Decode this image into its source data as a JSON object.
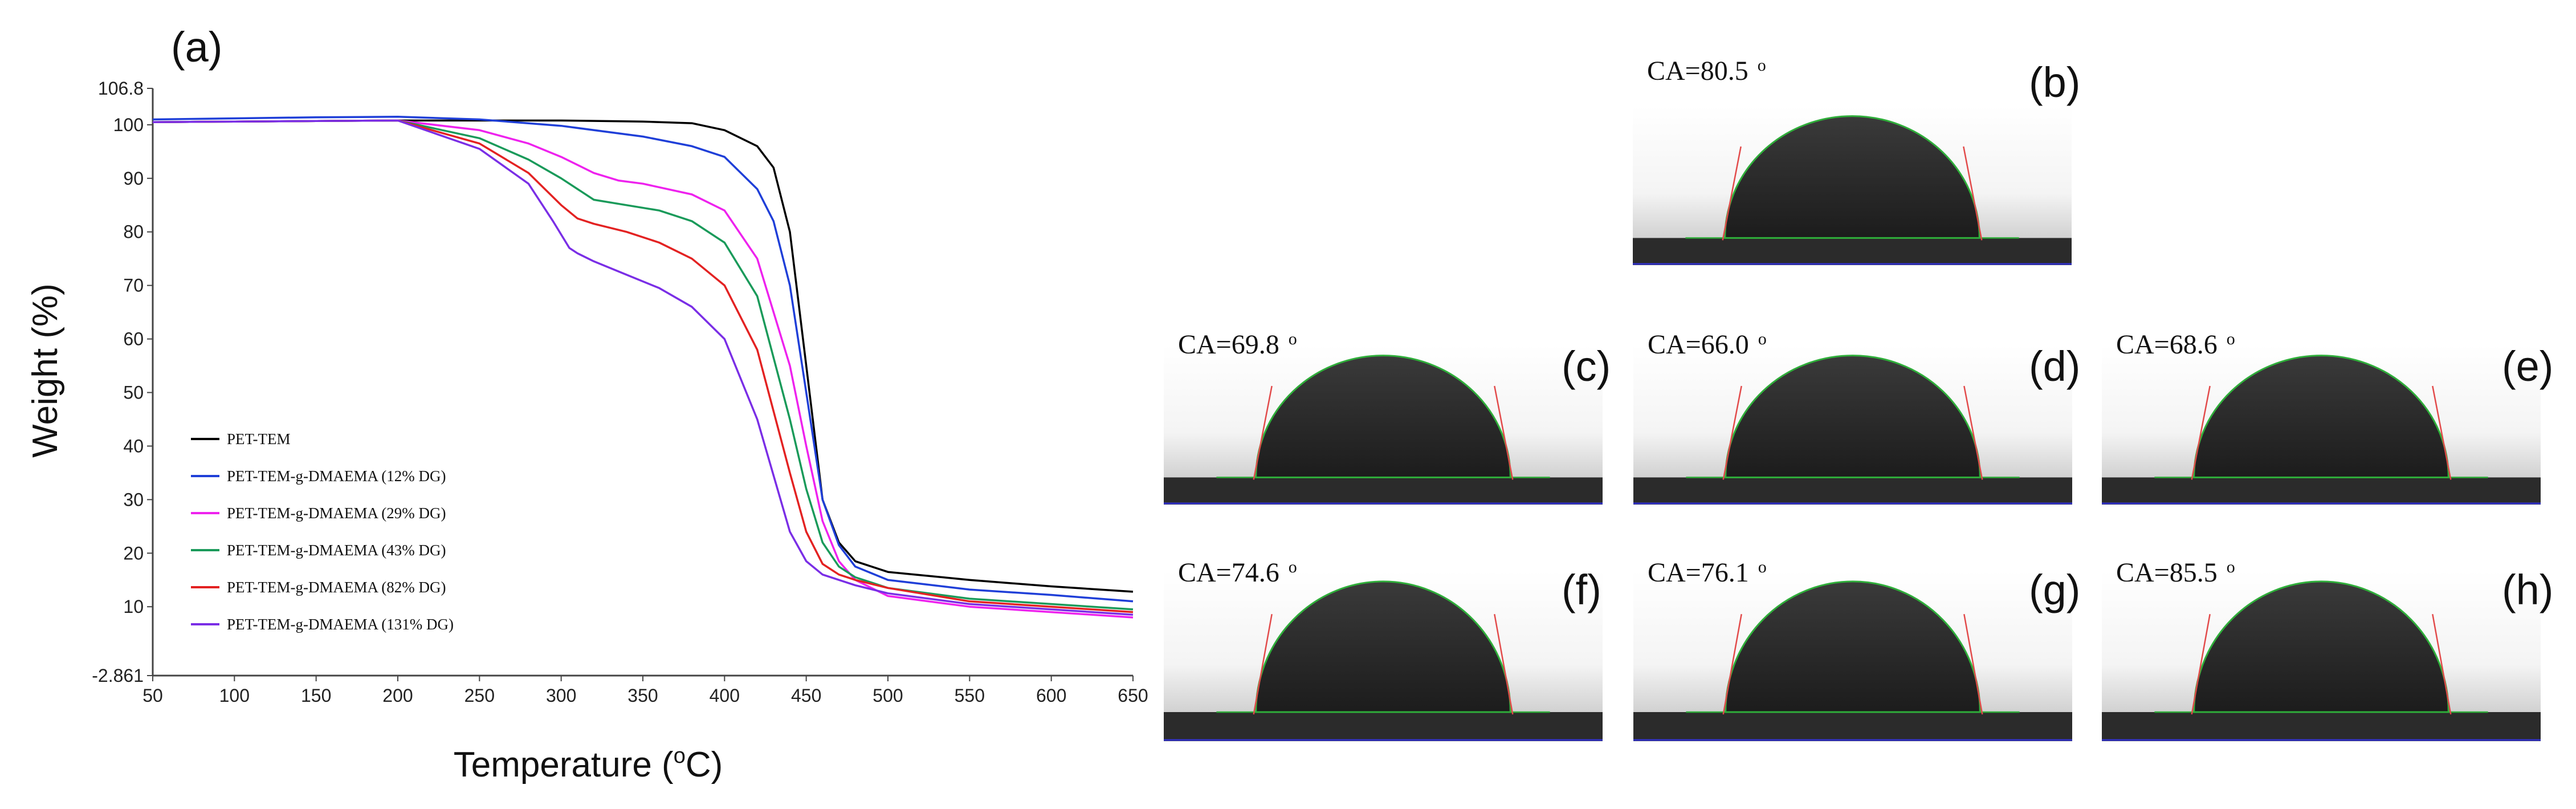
{
  "chart_data": {
    "type": "line",
    "panel_label": "(a)",
    "xlabel": "Temperature (",
    "xlabel_sup": "o",
    "xlabel_tail": "C)",
    "ylabel": "Weight  (%)",
    "xlim": [
      50,
      650
    ],
    "ylim": [
      -2.861,
      106.8
    ],
    "xticks": [
      "50",
      "100",
      "150",
      "200",
      "250",
      "300",
      "350",
      "400",
      "450",
      "500",
      "550",
      "600",
      "650"
    ],
    "yticks": [
      {
        "v": 106.8,
        "label": "106.8"
      },
      {
        "v": 100,
        "label": "100"
      },
      {
        "v": 90,
        "label": "90"
      },
      {
        "v": 80,
        "label": "80"
      },
      {
        "v": 70,
        "label": "70"
      },
      {
        "v": 60,
        "label": "60"
      },
      {
        "v": 50,
        "label": "50"
      },
      {
        "v": 40,
        "label": "40"
      },
      {
        "v": 30,
        "label": "30"
      },
      {
        "v": 20,
        "label": "20"
      },
      {
        "v": 10,
        "label": "10"
      },
      {
        "v": -2.861,
        "label": "-2.861"
      }
    ],
    "grid": false,
    "legend_position": "lower-left",
    "series": [
      {
        "name": "PET-TEM",
        "color": "#000000",
        "x": [
          50,
          100,
          150,
          200,
          250,
          300,
          350,
          380,
          400,
          420,
          430,
          440,
          450,
          460,
          470,
          480,
          500,
          550,
          600,
          650
        ],
        "y": [
          100.5,
          100.6,
          100.7,
          100.8,
          100.8,
          100.8,
          100.6,
          100.3,
          99.0,
          96.0,
          92.0,
          80.0,
          55.0,
          30.0,
          22.0,
          18.5,
          16.5,
          15.0,
          13.8,
          12.8
        ]
      },
      {
        "name": "PET-TEM-g-DMAEMA (12% DG)",
        "color": "#1f3fd8",
        "x": [
          50,
          100,
          150,
          200,
          250,
          300,
          350,
          380,
          400,
          420,
          430,
          440,
          450,
          460,
          470,
          480,
          500,
          550,
          600,
          650
        ],
        "y": [
          101.0,
          101.2,
          101.4,
          101.5,
          101.0,
          99.8,
          97.8,
          96.0,
          94.0,
          88.0,
          82.0,
          70.0,
          50.0,
          30.0,
          21.5,
          17.5,
          15.0,
          13.2,
          12.2,
          11.0
        ]
      },
      {
        "name": "PET-TEM-g-DMAEMA (29% DG)",
        "color": "#ee22ee",
        "x": [
          50,
          100,
          150,
          200,
          250,
          280,
          300,
          320,
          335,
          350,
          380,
          400,
          420,
          440,
          450,
          460,
          470,
          480,
          500,
          550,
          600,
          650
        ],
        "y": [
          100.5,
          100.6,
          100.7,
          100.8,
          99.0,
          96.5,
          94.0,
          91.0,
          89.6,
          89.0,
          87.0,
          84.0,
          75.0,
          55.0,
          40.0,
          26.0,
          18.5,
          15.0,
          12.0,
          10.0,
          9.0,
          8.0
        ]
      },
      {
        "name": "PET-TEM-g-DMAEMA (43% DG)",
        "color": "#1a9a5a",
        "x": [
          50,
          100,
          150,
          200,
          250,
          280,
          300,
          320,
          340,
          360,
          380,
          400,
          420,
          440,
          450,
          460,
          470,
          480,
          500,
          550,
          600,
          650
        ],
        "y": [
          100.5,
          100.6,
          100.7,
          100.8,
          97.5,
          93.5,
          90.0,
          86.0,
          85.0,
          84.0,
          82.0,
          78.0,
          68.0,
          45.0,
          32.0,
          22.0,
          17.5,
          15.5,
          13.5,
          11.5,
          10.5,
          9.5
        ]
      },
      {
        "name": "PET-TEM-g-DMAEMA (82% DG)",
        "color": "#e32222",
        "x": [
          50,
          100,
          150,
          200,
          250,
          280,
          300,
          310,
          320,
          340,
          360,
          380,
          400,
          420,
          440,
          450,
          460,
          470,
          480,
          500,
          550,
          600,
          650
        ],
        "y": [
          100.5,
          100.6,
          100.7,
          100.8,
          96.5,
          91.0,
          85.0,
          82.5,
          81.5,
          80.0,
          78.0,
          75.0,
          70.0,
          58.0,
          35.0,
          24.0,
          18.0,
          16.0,
          15.0,
          13.5,
          11.0,
          10.0,
          9.0
        ]
      },
      {
        "name": "PET-TEM-g-DMAEMA (131% DG)",
        "color": "#7a2ee6",
        "x": [
          50,
          100,
          150,
          200,
          250,
          280,
          295,
          305,
          310,
          320,
          340,
          360,
          380,
          400,
          420,
          440,
          450,
          460,
          470,
          480,
          500,
          550,
          600,
          650
        ],
        "y": [
          100.5,
          100.6,
          100.7,
          100.8,
          95.5,
          89.0,
          82.0,
          77.0,
          76.0,
          74.5,
          72.0,
          69.5,
          66.0,
          60.0,
          45.0,
          24.0,
          18.5,
          16.0,
          15.0,
          14.0,
          12.5,
          10.5,
          9.5,
          8.5
        ]
      }
    ]
  },
  "contact_angle_panels": [
    {
      "id": "b",
      "label": "(b)",
      "ca_text": "CA=80.5",
      "deg": "o"
    },
    {
      "id": "c",
      "label": "(c)",
      "ca_text": "CA=69.8",
      "deg": "o"
    },
    {
      "id": "d",
      "label": "(d)",
      "ca_text": "CA=66.0",
      "deg": "o"
    },
    {
      "id": "e",
      "label": "(e)",
      "ca_text": "CA=68.6",
      "deg": "o"
    },
    {
      "id": "f",
      "label": "(f)",
      "ca_text": "CA=74.6",
      "deg": "o"
    },
    {
      "id": "g",
      "label": "(g)",
      "ca_text": "CA=76.1",
      "deg": "o"
    },
    {
      "id": "h",
      "label": "(h)",
      "ca_text": "CA=85.5",
      "deg": "o"
    }
  ]
}
